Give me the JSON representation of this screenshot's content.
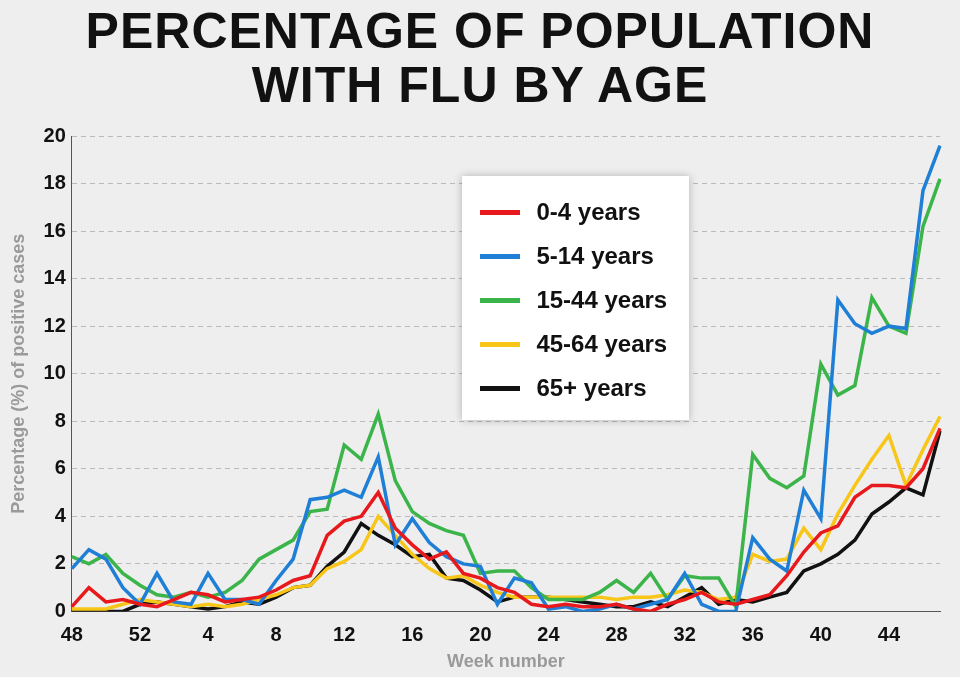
{
  "chart_data": {
    "type": "line",
    "title": "PERCENTAGE OF POPULATION WITH FLU BY AGE",
    "x_label": "Week number",
    "y_label": "Percentage (%) of positive cases",
    "categories": [
      48,
      null,
      null,
      null,
      52,
      null,
      null,
      null,
      4,
      null,
      null,
      null,
      8,
      null,
      null,
      null,
      12,
      null,
      null,
      null,
      16,
      null,
      null,
      null,
      20,
      null,
      null,
      null,
      24,
      null,
      null,
      null,
      28,
      null,
      null,
      null,
      32,
      null,
      null,
      null,
      36,
      null,
      null,
      null,
      40,
      null,
      null,
      null,
      44,
      null,
      null,
      null
    ],
    "series": [
      {
        "name": "0-4 years",
        "color": "#e8191c",
        "values": [
          0.2,
          1.0,
          0.4,
          0.5,
          0.3,
          0.2,
          0.5,
          0.8,
          0.7,
          0.4,
          0.5,
          0.6,
          0.9,
          1.3,
          1.5,
          3.2,
          3.8,
          4.0,
          5.0,
          3.5,
          2.8,
          2.2,
          2.5,
          1.6,
          1.4,
          1.0,
          0.8,
          0.3,
          0.2,
          0.3,
          0.2,
          0.2,
          0.3,
          0.1,
          0.0,
          0.3,
          0.5,
          0.8,
          0.4,
          0.3,
          0.5,
          0.7,
          1.5,
          2.5,
          3.3,
          3.6,
          4.8,
          5.3,
          5.3,
          5.2,
          6.0,
          7.7
        ]
      },
      {
        "name": "5-14 years",
        "color": "#1f7fd6",
        "values": [
          1.8,
          2.6,
          2.2,
          1.0,
          0.3,
          1.6,
          0.4,
          0.3,
          1.6,
          0.5,
          0.5,
          0.3,
          1.3,
          2.2,
          4.7,
          4.8,
          5.1,
          4.8,
          6.5,
          2.8,
          3.9,
          2.9,
          2.3,
          2.0,
          1.9,
          0.3,
          1.4,
          1.2,
          0.1,
          0.2,
          0.0,
          0.1,
          0.3,
          0.1,
          0.3,
          0.5,
          1.6,
          0.3,
          0.0,
          0.0,
          3.1,
          2.2,
          1.7,
          5.1,
          3.9,
          13.1,
          12.1,
          11.7,
          12.0,
          11.9,
          17.7,
          19.6
        ]
      },
      {
        "name": "15-44 years",
        "color": "#3bb44a",
        "values": [
          2.3,
          2.0,
          2.4,
          1.6,
          1.1,
          0.7,
          0.6,
          0.8,
          0.6,
          0.8,
          1.3,
          2.2,
          2.6,
          3.0,
          4.2,
          4.3,
          7.0,
          6.4,
          8.3,
          5.5,
          4.2,
          3.7,
          3.4,
          3.2,
          1.6,
          1.7,
          1.7,
          1.0,
          0.5,
          0.5,
          0.5,
          0.8,
          1.3,
          0.8,
          1.6,
          0.5,
          1.5,
          1.4,
          1.4,
          0.2,
          6.6,
          5.6,
          5.2,
          5.7,
          10.4,
          9.1,
          9.5,
          13.2,
          12.0,
          11.7,
          16.2,
          18.2
        ]
      },
      {
        "name": "45-64 years",
        "color": "#f7c619",
        "values": [
          0.1,
          0.1,
          0.1,
          0.3,
          0.5,
          0.4,
          0.3,
          0.2,
          0.3,
          0.2,
          0.3,
          0.5,
          0.7,
          1.0,
          1.1,
          1.8,
          2.1,
          2.6,
          4.0,
          3.2,
          2.4,
          1.8,
          1.4,
          1.5,
          1.1,
          0.8,
          0.6,
          0.6,
          0.6,
          0.6,
          0.6,
          0.6,
          0.5,
          0.6,
          0.6,
          0.7,
          0.9,
          0.8,
          0.5,
          0.6,
          2.4,
          2.1,
          2.2,
          3.5,
          2.6,
          4.1,
          5.3,
          6.4,
          7.4,
          5.3,
          6.8,
          8.2
        ]
      },
      {
        "name": "65+ years",
        "color": "#111111",
        "values": [
          0.0,
          0.0,
          0.0,
          0.0,
          0.3,
          0.4,
          0.3,
          0.2,
          0.1,
          0.2,
          0.4,
          0.3,
          0.6,
          1.0,
          1.1,
          1.9,
          2.5,
          3.7,
          3.2,
          2.8,
          2.3,
          2.4,
          1.4,
          1.3,
          0.9,
          0.4,
          0.6,
          0.6,
          0.6,
          0.5,
          0.4,
          0.3,
          0.2,
          0.2,
          0.4,
          0.2,
          0.6,
          1.0,
          0.3,
          0.5,
          0.4,
          0.6,
          0.8,
          1.7,
          2.0,
          2.4,
          3.0,
          4.1,
          4.6,
          5.2,
          4.9,
          7.6
        ]
      }
    ],
    "ylim": [
      0,
      20
    ],
    "yticks": [
      0,
      2,
      4,
      6,
      8,
      10,
      12,
      14,
      16,
      18,
      20
    ],
    "grid": true,
    "legend": "upper center"
  }
}
